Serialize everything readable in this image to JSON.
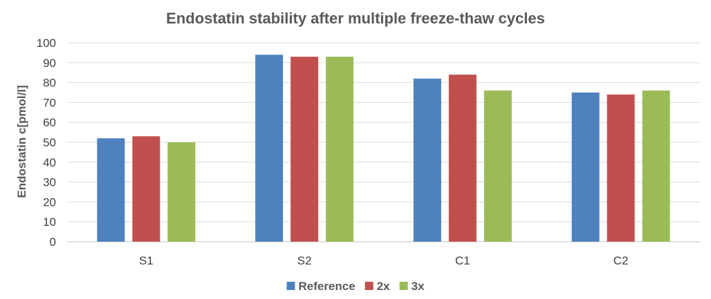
{
  "chart_data": {
    "type": "bar",
    "title": "Endostatin stability after multiple freeze-thaw cycles",
    "xlabel": "",
    "ylabel": "Endostatin c[pmol/l]",
    "ylim": [
      0,
      100
    ],
    "ytick_step": 10,
    "grid": true,
    "legend_position": "bottom",
    "categories": [
      "S1",
      "S2",
      "C1",
      "C2"
    ],
    "series": [
      {
        "name": "Reference",
        "color": "#4f81bd",
        "values": [
          52,
          94,
          82,
          75
        ]
      },
      {
        "name": "2x",
        "color": "#c0504d",
        "values": [
          53,
          93,
          84,
          74
        ]
      },
      {
        "name": "3x",
        "color": "#9bbb59",
        "values": [
          50,
          93,
          76,
          76
        ]
      }
    ]
  }
}
